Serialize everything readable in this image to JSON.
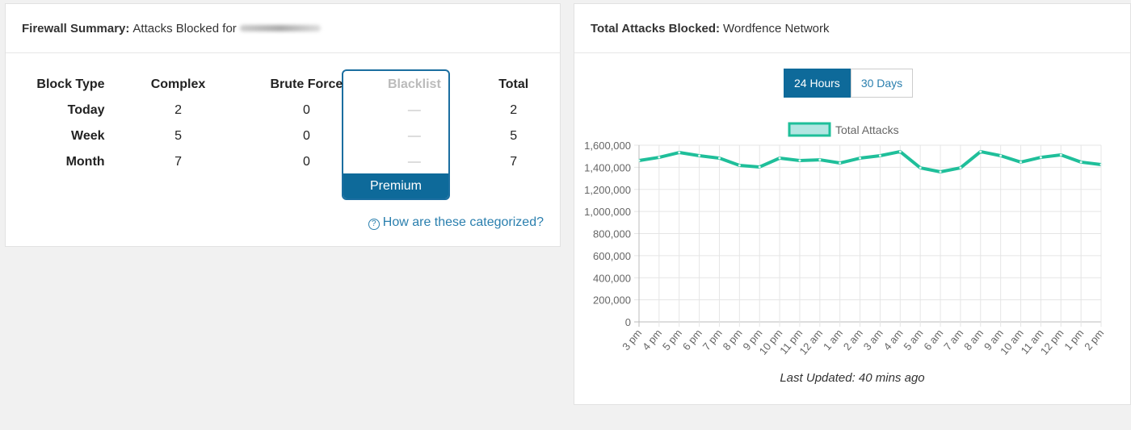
{
  "firewall": {
    "title_bold": "Firewall Summary:",
    "title_rest": "Attacks Blocked for",
    "headers": [
      "Block Type",
      "Complex",
      "Brute Force",
      "Blacklist",
      "Total"
    ],
    "rows": [
      {
        "label": "Today",
        "complex": "2",
        "brute": "0",
        "blacklist": "—",
        "total": "2"
      },
      {
        "label": "Week",
        "complex": "5",
        "brute": "0",
        "blacklist": "—",
        "total": "5"
      },
      {
        "label": "Month",
        "complex": "7",
        "brute": "0",
        "blacklist": "—",
        "total": "7"
      }
    ],
    "premium": "Premium",
    "help_link": "How are these categorized?"
  },
  "network": {
    "title_bold": "Total Attacks Blocked:",
    "title_rest": "Wordfence Network",
    "tabs": [
      "24 Hours",
      "30 Days"
    ],
    "last_updated": "Last Updated: 40 mins ago"
  },
  "colors": {
    "accent": "#0e6a9a",
    "line": "#1fbf9a",
    "fill": "#b2e6e2"
  },
  "chart_data": {
    "type": "line",
    "legend": [
      "Total Attacks"
    ],
    "legend_position": "top",
    "categories": [
      "3 pm",
      "4 pm",
      "5 pm",
      "6 pm",
      "7 pm",
      "8 pm",
      "9 pm",
      "10 pm",
      "11 pm",
      "12 am",
      "1 am",
      "2 am",
      "3 am",
      "4 am",
      "5 am",
      "6 am",
      "7 am",
      "8 am",
      "9 am",
      "10 am",
      "11 am",
      "12 pm",
      "1 pm",
      "2 pm"
    ],
    "series": [
      {
        "name": "Total Attacks",
        "values": [
          1461000,
          1490000,
          1534000,
          1505000,
          1483000,
          1417000,
          1403000,
          1483000,
          1461000,
          1468000,
          1439000,
          1483000,
          1505000,
          1542000,
          1395000,
          1359000,
          1395000,
          1542000,
          1505000,
          1447000,
          1490000,
          1512000,
          1447000,
          1425000
        ]
      }
    ],
    "yticks": [
      "0",
      "200,000",
      "400,000",
      "600,000",
      "800,000",
      "1,000,000",
      "1,200,000",
      "1,400,000",
      "1,600,000"
    ],
    "ylim": [
      0,
      1600000
    ],
    "grid": true
  }
}
